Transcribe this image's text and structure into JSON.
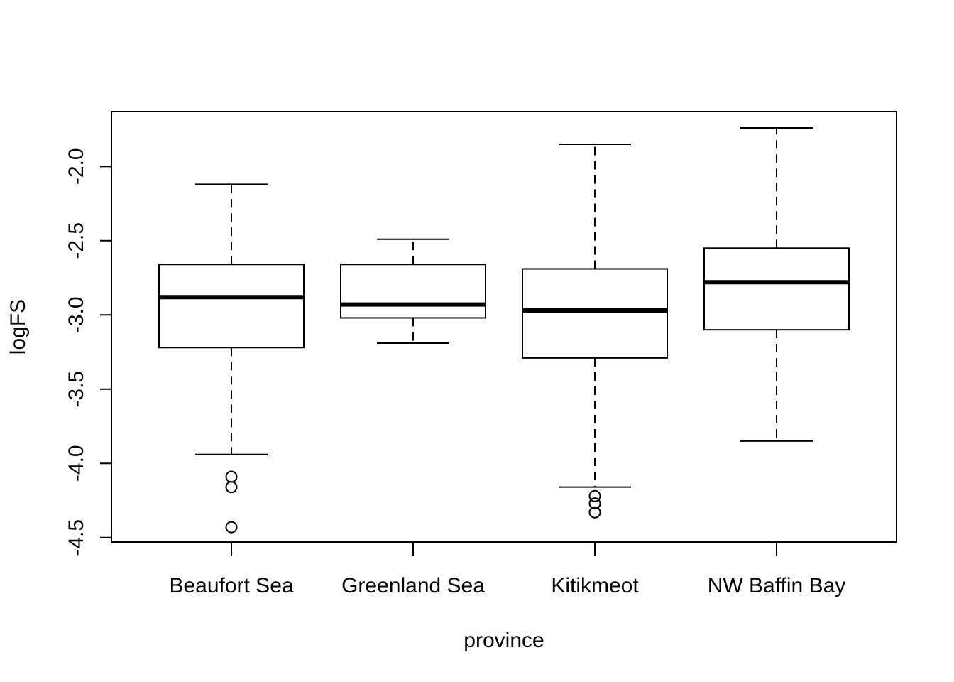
{
  "chart_data": {
    "type": "boxplot",
    "xlabel": "province",
    "ylabel": "logFS",
    "ylim": [
      -4.53,
      -1.63
    ],
    "yticks": [
      -4.5,
      -4.0,
      -3.5,
      -3.0,
      -2.5,
      -2.0
    ],
    "ytick_labels": [
      "-4.5",
      "-4.0",
      "-3.5",
      "-3.0",
      "-2.5",
      "-2.0"
    ],
    "categories": [
      "Beaufort Sea",
      "Greenland Sea",
      "Kitikmeot",
      "NW Baffin Bay"
    ],
    "boxes": [
      {
        "category": "Beaufort Sea",
        "whisker_low": -3.94,
        "q1": -3.22,
        "median": -2.88,
        "q3": -2.66,
        "whisker_high": -2.12,
        "outliers": [
          -4.09,
          -4.16,
          -4.43
        ]
      },
      {
        "category": "Greenland Sea",
        "whisker_low": -3.19,
        "q1": -3.02,
        "median": -2.93,
        "q3": -2.66,
        "whisker_high": -2.49,
        "outliers": []
      },
      {
        "category": "Kitikmeot",
        "whisker_low": -4.16,
        "q1": -3.29,
        "median": -2.97,
        "q3": -2.69,
        "whisker_high": -1.85,
        "outliers": [
          -4.22,
          -4.27,
          -4.33
        ]
      },
      {
        "category": "NW Baffin Bay",
        "whisker_low": -3.85,
        "q1": -3.1,
        "median": -2.78,
        "q3": -2.55,
        "whisker_high": -1.74,
        "outliers": []
      }
    ],
    "grid": false,
    "legend": "none"
  }
}
